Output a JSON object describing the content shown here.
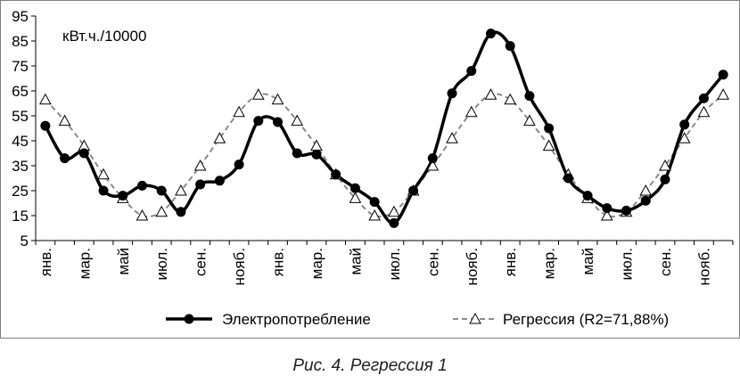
{
  "chart_data": {
    "type": "line",
    "title": "",
    "ylabel": "кВт.ч./10000",
    "xlabel": "",
    "ylim": [
      5,
      95
    ],
    "yticks": [
      5,
      15,
      25,
      35,
      45,
      55,
      65,
      75,
      85,
      95
    ],
    "grid": false,
    "legend": "bottom",
    "x_tick_labels": [
      "янв.",
      "мар.",
      "май",
      "июл.",
      "сен.",
      "нояб.",
      "янв.",
      "мар.",
      "май",
      "июл.",
      "сен.",
      "нояб.",
      "янв.",
      "мар.",
      "май",
      "июл.",
      "сен.",
      "нояб."
    ],
    "series": [
      {
        "name": "Электропотребление",
        "color": "#000000",
        "marker": "circle",
        "values": [
          51,
          38,
          40,
          25,
          23,
          27,
          25,
          16.5,
          27.5,
          29,
          35.5,
          53,
          52.5,
          40,
          39.5,
          31.5,
          26,
          20.5,
          12,
          25,
          38,
          64,
          73,
          88,
          83,
          63,
          50,
          30,
          23,
          18,
          17,
          21,
          29.5,
          51.5,
          62,
          71.5
        ]
      },
      {
        "name": "Регрессия (R2=71,88%)",
        "color": "#8a8a8a",
        "marker": "triangle",
        "values": [
          61.5,
          53,
          43,
          31.5,
          22,
          15,
          16.5,
          25,
          35,
          46,
          56.5,
          63.5,
          61.5,
          53,
          43,
          31.5,
          22,
          15,
          16.5,
          25,
          35,
          46,
          56.5,
          63.5,
          61.5,
          53,
          43,
          31.5,
          22,
          15,
          16.5,
          25,
          35,
          46,
          56.5,
          63.5
        ]
      }
    ]
  },
  "caption": "Рис. 4. Регрессия 1"
}
